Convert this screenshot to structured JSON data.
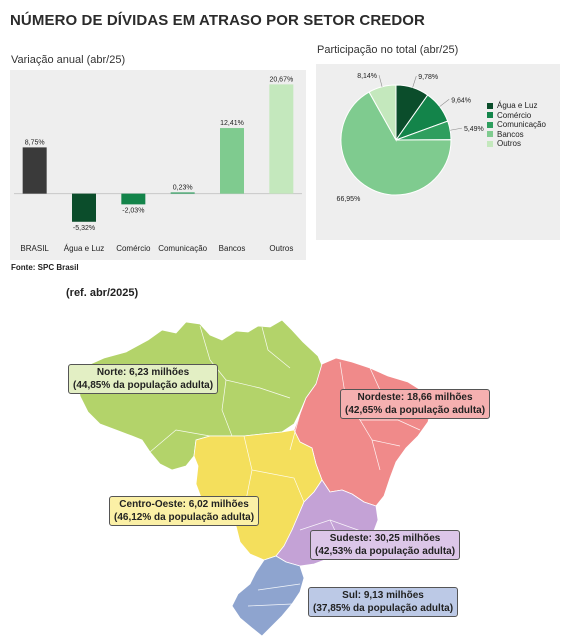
{
  "header": {
    "title": "NÚMERO DE DÍVIDAS EM ATRASO POR SETOR CREDOR"
  },
  "bar_panel": {
    "title": "Variação anual (abr/25)"
  },
  "pie_panel": {
    "title": "Participação no total (abr/25)"
  },
  "source": "Fonte: SPC Brasil",
  "map": {
    "ref": "(ref. abr/2025)",
    "regions": [
      {
        "key": "norte",
        "line1": "Norte: 6,23 milhões",
        "line2": "(44,85% da população adulta)",
        "color": "#b3d36a",
        "box_color": "#e3efc4"
      },
      {
        "key": "nordeste",
        "line1": "Nordeste: 18,66 milhões",
        "line2": "(42,65% da população adulta)",
        "color": "#f08a8a",
        "box_color": "#f5b0b0"
      },
      {
        "key": "centro_oeste",
        "line1": "Centro-Oeste: 6,02 milhões",
        "line2": "(46,12% da população adulta)",
        "color": "#f4df5c",
        "box_color": "#fbf0a6"
      },
      {
        "key": "sudeste",
        "line1": "Sudeste: 30,25 milhões",
        "line2": "(42,53% da população adulta)",
        "color": "#c4a2d6",
        "box_color": "#dcc6e8"
      },
      {
        "key": "sul",
        "line1": "Sul: 9,13 milhões",
        "line2": "(37,85% da população adulta)",
        "color": "#8ea4cf",
        "box_color": "#bcc9e6"
      }
    ]
  },
  "chart_data": [
    {
      "type": "bar",
      "title": "Variação anual (abr/25)",
      "categories": [
        "BRASIL",
        "Água e Luz",
        "Comércio",
        "Comunicação",
        "Bancos",
        "Outros"
      ],
      "values": [
        8.75,
        -5.32,
        -2.03,
        0.23,
        12.41,
        20.67
      ],
      "labels": [
        "8,75%",
        "-5,32%",
        "-2,03%",
        "0,23%",
        "12,41%",
        "20,67%"
      ],
      "colors": [
        "#3a3a3a",
        "#0b4d2b",
        "#13844a",
        "#2e9e5e",
        "#7fcb8f",
        "#c4e8bd"
      ],
      "ylim": [
        -6.5,
        21.5
      ]
    },
    {
      "type": "pie",
      "title": "Participação no total (abr/25)",
      "categories": [
        "Água e Luz",
        "Comércio",
        "Comunicação",
        "Bancos",
        "Outros"
      ],
      "values": [
        9.78,
        9.64,
        5.49,
        66.95,
        8.14
      ],
      "labels": [
        "9,78%",
        "9,64%",
        "5,49%",
        "66,95%",
        "8,14%"
      ],
      "colors": [
        "#0b4d2b",
        "#13844a",
        "#2e9e5e",
        "#7fcb8f",
        "#c4e8bd"
      ],
      "legend": "right"
    }
  ]
}
